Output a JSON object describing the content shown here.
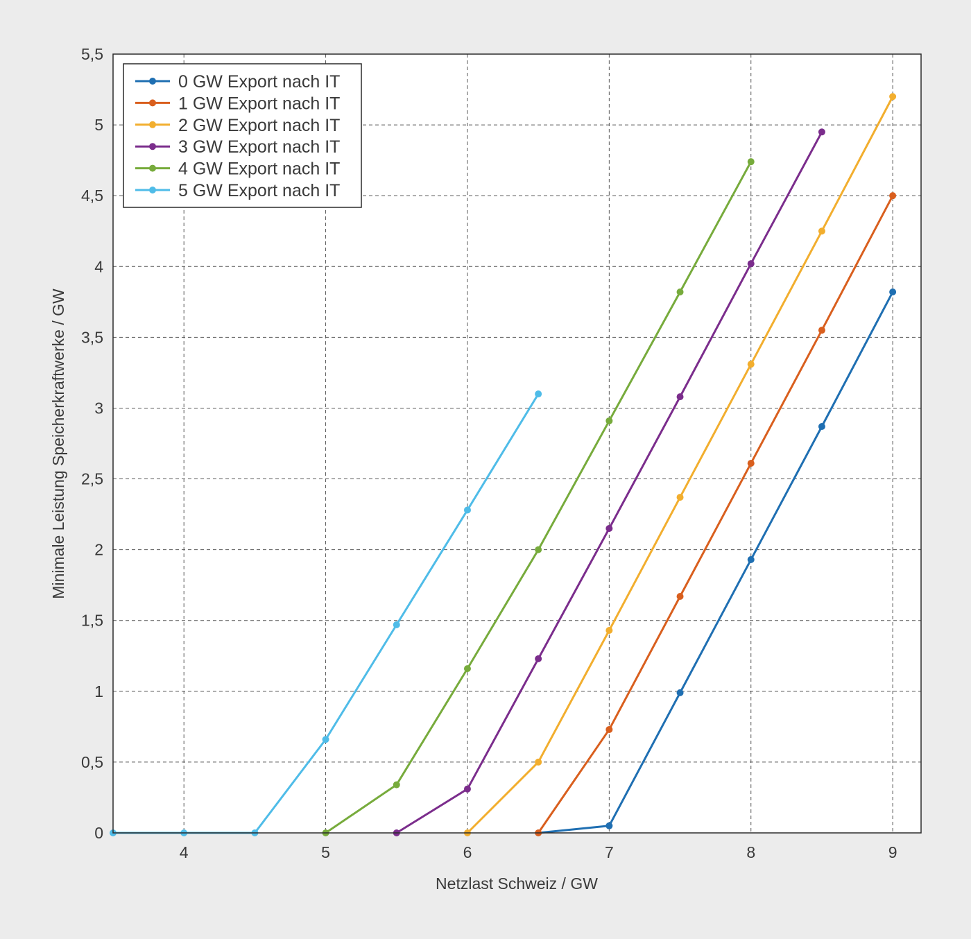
{
  "chart_data": {
    "type": "line",
    "title": "",
    "xlabel": "Netzlast Schweiz / GW",
    "ylabel": "Minimale Leistung Speicherkraftwerke / GW",
    "xlim": [
      3.5,
      9.2
    ],
    "ylim": [
      0,
      5.5
    ],
    "x_ticks": [
      4,
      5,
      6,
      7,
      8,
      9
    ],
    "x_tick_labels": [
      "4",
      "5",
      "6",
      "7",
      "8",
      "9"
    ],
    "y_ticks": [
      0,
      0.5,
      1,
      1.5,
      2,
      2.5,
      3,
      3.5,
      4,
      4.5,
      5,
      5.5
    ],
    "y_tick_labels": [
      "0",
      "0,5",
      "1",
      "1,5",
      "2",
      "2,5",
      "3",
      "3,5",
      "4",
      "4,5",
      "5",
      "5,5"
    ],
    "grid": true,
    "legend_position": "top-left",
    "x": [
      3.5,
      4,
      4.5,
      5,
      5.5,
      6,
      6.5,
      7,
      7.5,
      8,
      8.5,
      9
    ],
    "series": [
      {
        "name": "0 GW Export nach IT",
        "color": "#1f6fb2",
        "values": [
          null,
          null,
          null,
          null,
          null,
          null,
          0,
          0.05,
          0.99,
          1.93,
          2.87,
          3.82
        ],
        "markers_from": 7
      },
      {
        "name": "1 GW Export nach IT",
        "color": "#d95f1e",
        "values": [
          null,
          null,
          null,
          null,
          null,
          null,
          0,
          0.73,
          1.67,
          2.61,
          3.55,
          4.5
        ]
      },
      {
        "name": "2 GW Export nach IT",
        "color": "#f2ae2e",
        "values": [
          null,
          null,
          null,
          null,
          null,
          0,
          0.5,
          1.43,
          2.37,
          3.31,
          4.25,
          5.2
        ]
      },
      {
        "name": "3 GW Export nach IT",
        "color": "#7b2d8c",
        "values": [
          null,
          null,
          null,
          null,
          0,
          0.31,
          1.23,
          2.15,
          3.08,
          4.02,
          4.95,
          null
        ]
      },
      {
        "name": "4 GW Export nach IT",
        "color": "#77ab3c",
        "values": [
          null,
          null,
          null,
          0,
          0.34,
          1.16,
          2.0,
          2.91,
          3.82,
          4.74,
          null,
          null
        ]
      },
      {
        "name": "5 GW Export nach IT",
        "color": "#4fbce8",
        "values": [
          0,
          0,
          0,
          0.66,
          1.47,
          2.28,
          3.1,
          null,
          null,
          null,
          null,
          null
        ]
      }
    ]
  }
}
